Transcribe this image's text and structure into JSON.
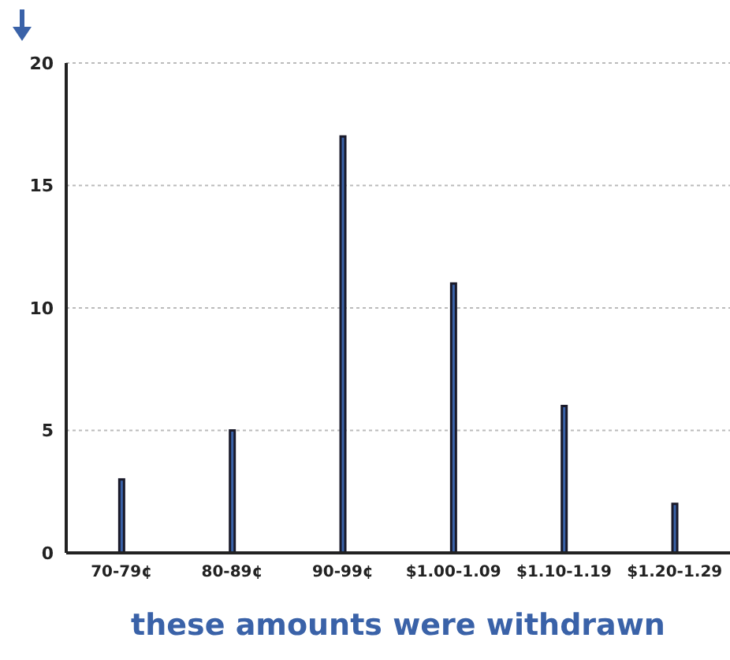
{
  "chart_data": {
    "type": "bar",
    "xlabel": "these amounts were withdrawn",
    "categories": [
      "70-79¢",
      "80-89¢",
      "90-99¢",
      "$1.00-1.09",
      "$1.10-1.19",
      "$1.20-1.29"
    ],
    "values": [
      3,
      5,
      17,
      11,
      6,
      2
    ],
    "color": "#3a62a8",
    "ylim": [
      0,
      20
    ],
    "yticks": [
      0,
      5,
      10,
      15,
      20
    ],
    "grid": "y"
  }
}
